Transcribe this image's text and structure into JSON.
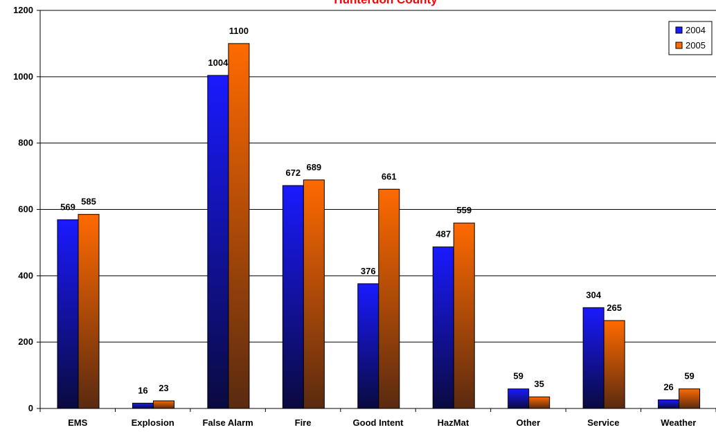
{
  "chart_data": {
    "type": "bar",
    "title": "Hunterdon County",
    "title_color": "#ff0000",
    "categories": [
      "EMS",
      "Explosion",
      "False Alarm",
      "Fire",
      "Good Intent",
      "HazMat",
      "Other",
      "Service",
      "Weather"
    ],
    "series": [
      {
        "name": "2004",
        "values": [
          569,
          16,
          1004,
          672,
          376,
          487,
          59,
          304,
          26
        ],
        "color_top": "#1a1aff",
        "color_bottom": "#0a0a40"
      },
      {
        "name": "2005",
        "values": [
          585,
          23,
          1100,
          689,
          661,
          559,
          35,
          265,
          59
        ],
        "color_top": "#ff6a00",
        "color_bottom": "#5a2a10"
      }
    ],
    "ylim": [
      0,
      1200
    ],
    "yticks": [
      0,
      200,
      400,
      600,
      800,
      1000,
      1200
    ],
    "xlabel": "",
    "ylabel": "",
    "grid": true,
    "legend": "top-right"
  }
}
